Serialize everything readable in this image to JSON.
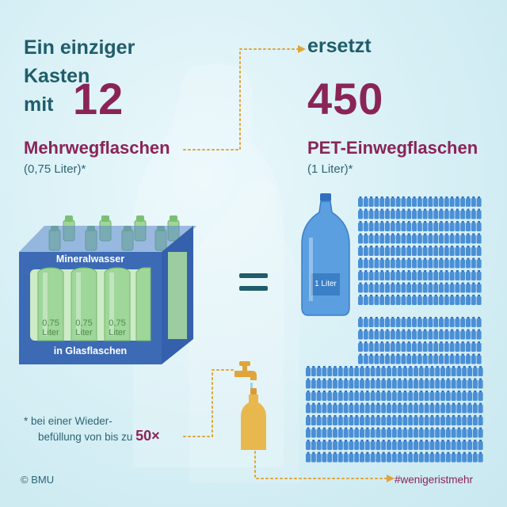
{
  "headline_line1": "Ein einziger Kasten",
  "headline_line2": "mit",
  "crate_count": "12",
  "crate_bottle_type": "Mehrwegflaschen",
  "crate_bottle_size": "(0,75 Liter)*",
  "connector_word": "ersetzt",
  "pet_count": "450",
  "pet_bottle_type": "PET-Einwegflaschen",
  "pet_bottle_size": "(1 Liter)*",
  "crate_label_top": "Mineralwasser",
  "crate_label_bottom": "in Glasflaschen",
  "glass_bottle_label_line1": "0,75",
  "glass_bottle_label_line2": "Liter",
  "pet_bottle_label": "1 Liter",
  "equals_sign": "=",
  "footnote_line1": "* bei einer Wieder-",
  "footnote_line2": "befüllung von bis zu",
  "footnote_max_refills": "50×",
  "copyright": "© BMU",
  "hashtag": "#wenigeristmehr",
  "colors": {
    "teal": "#1f5d6b",
    "plum": "#8a2457",
    "crate_blue": "#3d6ab5",
    "glass_green": "#8ecf8a",
    "pet_blue": "#4a8fd6",
    "dotted_orange": "#e0a53a",
    "amber_bottle": "#e8b84f"
  },
  "icons": [
    "crate-icon",
    "pet-bottle-icon",
    "tap-icon",
    "refill-bottle-icon",
    "mini-pet-bottle-icon"
  ]
}
